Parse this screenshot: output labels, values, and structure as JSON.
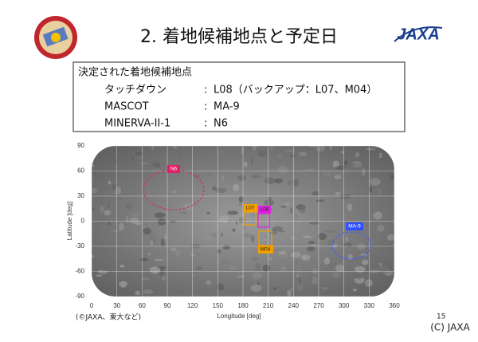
{
  "header": {
    "title": "2. 着地候補地点と予定日"
  },
  "box": {
    "heading": "決定された着地候補地点",
    "rows": [
      [
        "タッチダウン",
        ":",
        "L08（バックアップ：L07、M04）"
      ],
      [
        "MASCOT",
        ":",
        "MA-9"
      ],
      [
        "MINERVA-II-1",
        ":",
        "N6"
      ]
    ]
  },
  "map": {
    "xlabel": "Longitude [deg]",
    "ylabel": "Latitude [deg]",
    "xticks": [
      0,
      30,
      60,
      90,
      120,
      150,
      180,
      210,
      240,
      270,
      300,
      330,
      360
    ],
    "yticks": [
      90,
      60,
      30,
      0,
      -30,
      -60,
      -90
    ],
    "sites": [
      "N6",
      "L07",
      "L08",
      "M04",
      "MA-9"
    ]
  },
  "footer": {
    "credit": "(©JAXA、東大など)",
    "page": "15",
    "copyright": "(C) JAXA"
  }
}
